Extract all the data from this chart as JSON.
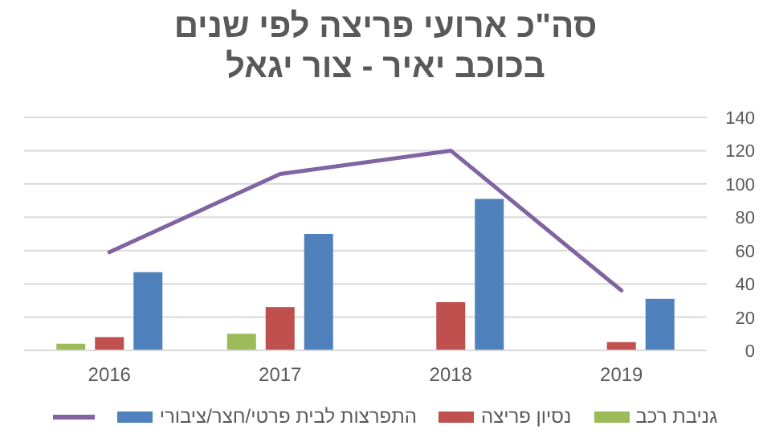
{
  "chart_data": {
    "type": "bar",
    "title": "סה\"כ ארועי פריצה לפי שנים\nבכוכב יאיר - צור יגאל",
    "categories": [
      "2016",
      "2017",
      "2018",
      "2019"
    ],
    "series": [
      {
        "name": "גניבת רכב",
        "color": "#9bbb59",
        "values": [
          4,
          10,
          null,
          null
        ]
      },
      {
        "name": "נסיון פריצה",
        "color": "#c0504d",
        "values": [
          8,
          26,
          29,
          5
        ]
      },
      {
        "name": "התפרצות לבית פרטי/חצר/ציבורי",
        "color": "#4f81bd",
        "values": [
          47,
          70,
          91,
          31
        ]
      },
      {
        "type": "line",
        "color": "#8064a2",
        "values": [
          59,
          106,
          120,
          36
        ]
      }
    ],
    "ylim": [
      0,
      140
    ],
    "yticks": [
      0,
      20,
      40,
      60,
      80,
      100,
      120,
      140
    ],
    "grid": "y",
    "legend": "bottom"
  }
}
